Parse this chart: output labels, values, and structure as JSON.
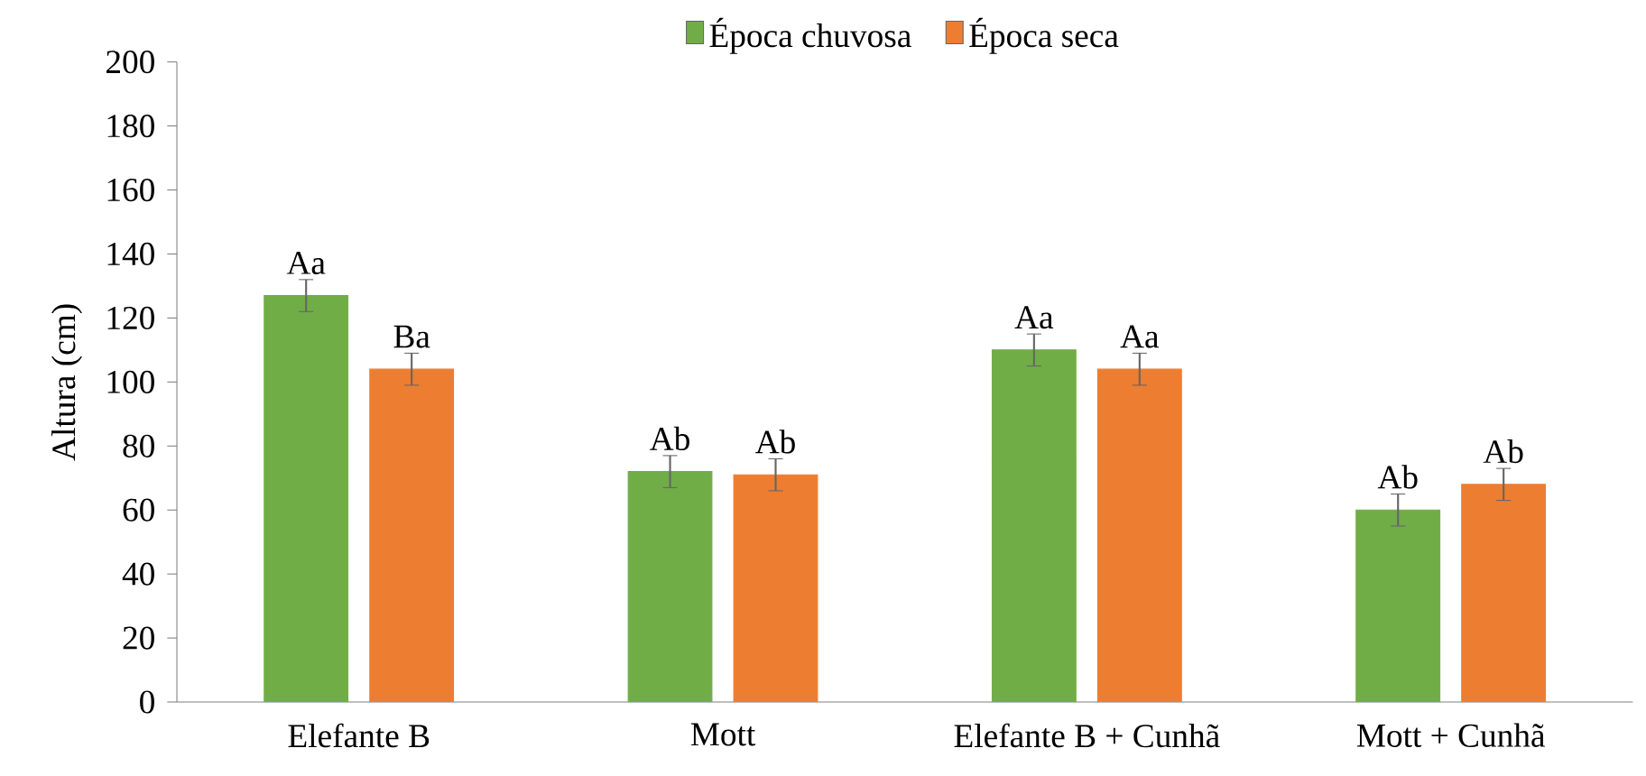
{
  "chart_data": {
    "type": "bar",
    "ylabel": "Altura (cm)",
    "categories": [
      "Elefante B",
      "Mott",
      "Elefante B + Cunhã",
      "Mott + Cunhã"
    ],
    "series": [
      {
        "name": "Época chuvosa",
        "color": "#70ad47",
        "values": [
          127,
          72,
          110,
          60
        ],
        "errors": [
          5,
          5,
          5,
          5
        ],
        "value_labels": [
          "Aa",
          "Ab",
          "Aa",
          "Ab"
        ]
      },
      {
        "name": "Época seca",
        "color": "#ed7d31",
        "values": [
          104,
          71,
          104,
          68
        ],
        "errors": [
          5,
          5,
          5,
          5
        ],
        "value_labels": [
          "Ba",
          "Ab",
          "Aa",
          "Ab"
        ]
      }
    ],
    "ylim": [
      0,
      200
    ],
    "yticks": [
      0,
      20,
      40,
      60,
      80,
      100,
      120,
      140,
      160,
      180,
      200
    ],
    "grid": false,
    "legend": "top"
  }
}
